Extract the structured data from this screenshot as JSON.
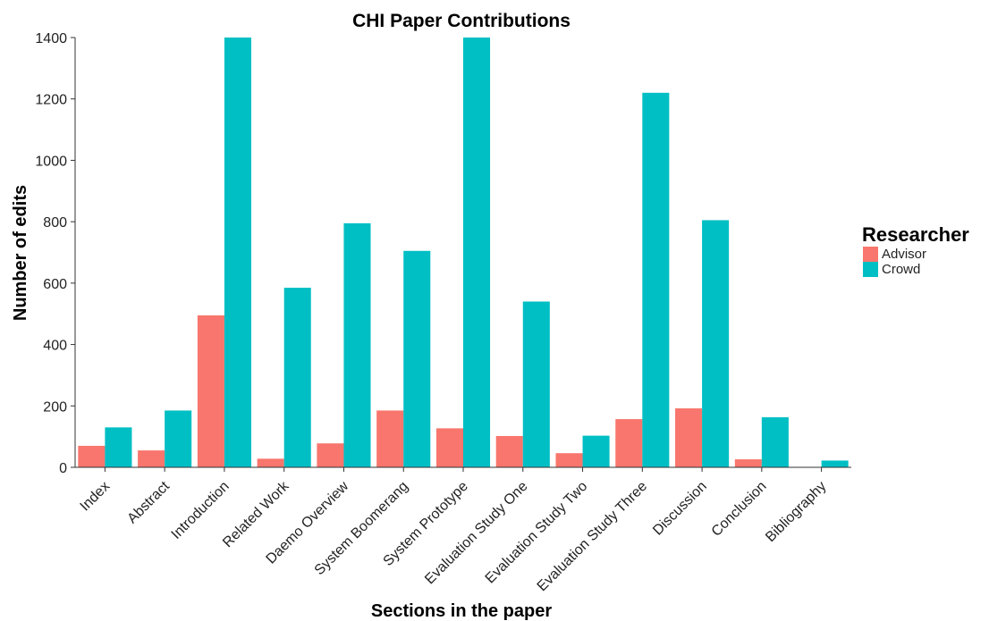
{
  "chart_data": {
    "type": "bar",
    "title": "CHI Paper Contributions",
    "xlabel": "Sections in the paper",
    "ylabel": "Number of edits",
    "ylim": [
      0,
      1400
    ],
    "yticks": [
      0,
      200,
      400,
      600,
      800,
      1000,
      1200,
      1400
    ],
    "grid": false,
    "legend": {
      "title": "Researcher",
      "position": "right"
    },
    "categories": [
      "Index",
      "Abstract",
      "Introduction",
      "Related Work",
      "Daemo Overview",
      "System Boomerang",
      "System Prototype",
      "Evaluation Study One",
      "Evaluation Study Two",
      "Evaluation Study Three",
      "Discussion",
      "Conclusion",
      "Bibliography"
    ],
    "series": [
      {
        "name": "Advisor",
        "color": "#F8766D",
        "values": [
          70,
          55,
          495,
          28,
          78,
          185,
          127,
          102,
          46,
          157,
          192,
          26,
          0
        ]
      },
      {
        "name": "Crowd",
        "color": "#00BFC4",
        "values": [
          130,
          185,
          1400,
          585,
          795,
          705,
          1400,
          540,
          103,
          1220,
          805,
          163,
          22
        ]
      }
    ]
  }
}
